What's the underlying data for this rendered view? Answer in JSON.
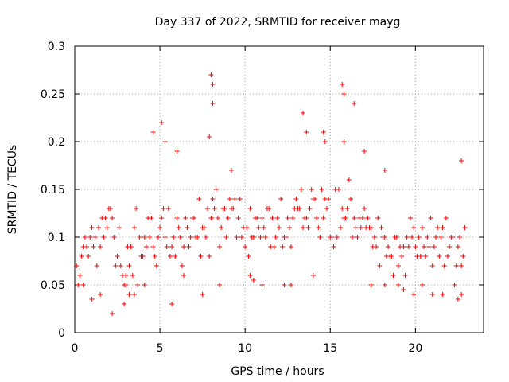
{
  "chart_data": {
    "type": "scatter",
    "title": "Day 337 of 2022, SRMTID for receiver mayg",
    "xlabel": "GPS time / hours",
    "ylabel": "SRMTID / TECUs",
    "xlim": [
      0,
      24
    ],
    "ylim": [
      0,
      0.3
    ],
    "xticks": [
      0,
      5,
      10,
      15,
      20
    ],
    "xtick_labels": [
      "0",
      "5",
      "10",
      "15",
      "20"
    ],
    "yticks": [
      0,
      0.05,
      0.1,
      0.15,
      0.2,
      0.25,
      0.3
    ],
    "ytick_labels": [
      "0",
      "0.05",
      "0.1",
      "0.15",
      "0.2",
      "0.25",
      "0.3"
    ],
    "grid": true,
    "marker": "plus",
    "color": "#ff0000",
    "series": [
      {
        "name": "mayg",
        "x": [
          0.1,
          0.3,
          0.5,
          0.6,
          0.8,
          1.0,
          1.1,
          1.3,
          1.5,
          1.7,
          1.9,
          2.0,
          2.2,
          2.3,
          2.5,
          2.7,
          2.9,
          3.0,
          3.2,
          3.3,
          3.5,
          3.6,
          3.8,
          4.0,
          4.2,
          4.4,
          4.5,
          4.7,
          4.9,
          5.0,
          5.2,
          5.4,
          5.6,
          5.8,
          6.0,
          6.2,
          6.4,
          6.6,
          6.8,
          7.0,
          7.2,
          7.4,
          7.6,
          7.8,
          8.0,
          8.1,
          8.2,
          8.4,
          8.6,
          8.8,
          9.0,
          9.2,
          9.4,
          9.6,
          9.8,
          10.0,
          10.2,
          10.4,
          10.6,
          10.8,
          11.0,
          11.2,
          11.4,
          11.6,
          11.8,
          12.0,
          12.2,
          12.4,
          12.6,
          12.8,
          13.0,
          13.2,
          13.4,
          13.6,
          13.8,
          14.0,
          14.2,
          14.4,
          14.6,
          14.8,
          15.0,
          15.2,
          15.4,
          15.6,
          15.8,
          16.0,
          16.2,
          16.4,
          16.6,
          16.8,
          17.0,
          17.2,
          17.4,
          17.6,
          17.8,
          18.0,
          18.2,
          18.4,
          18.6,
          18.8,
          19.0,
          19.2,
          19.4,
          19.6,
          19.8,
          20.0,
          20.2,
          20.4,
          20.6,
          20.8,
          21.0,
          21.2,
          21.4,
          21.6,
          21.8,
          22.0,
          22.2,
          22.4,
          22.6,
          22.8,
          0.2,
          0.7,
          1.2,
          1.6,
          2.1,
          2.6,
          3.1,
          3.4,
          3.7,
          4.1,
          4.6,
          5.1,
          5.5,
          5.9,
          6.3,
          6.7,
          7.1,
          7.5,
          7.9,
          8.3,
          8.7,
          9.1,
          9.5,
          9.9,
          10.3,
          10.7,
          11.1,
          11.5,
          11.9,
          12.3,
          12.7,
          13.1,
          13.5,
          13.9,
          14.3,
          14.7,
          15.1,
          15.5,
          15.9,
          16.3,
          16.7,
          17.1,
          17.5,
          17.9,
          18.3,
          18.7,
          19.1,
          19.5,
          19.9,
          20.3,
          20.7,
          21.1,
          21.5,
          21.9,
          22.3,
          22.7,
          0.4,
          0.9,
          1.4,
          1.8,
          2.4,
          2.8,
          3.3,
          3.9,
          4.3,
          4.8,
          5.3,
          5.7,
          6.1,
          6.5,
          6.9,
          7.3,
          7.7,
          8.05,
          8.5,
          8.9,
          9.3,
          9.7,
          10.1,
          10.5,
          10.9,
          11.3,
          11.7,
          12.1,
          12.5,
          12.9,
          13.3,
          13.7,
          14.1,
          14.5,
          14.9,
          15.3,
          15.7,
          16.1,
          16.5,
          16.9,
          17.3,
          17.7,
          18.1,
          18.5,
          18.9,
          19.3,
          19.7,
          20.1,
          20.5,
          20.9,
          21.3,
          21.7,
          22.1,
          22.5,
          22.9,
          1.0,
          1.5,
          2.2,
          3.0,
          3.5,
          4.6,
          5.1,
          5.3,
          6.0,
          7.9,
          8.0,
          8.1,
          8.1,
          9.2,
          11.0,
          12.3,
          13.4,
          13.6,
          14.6,
          14.7,
          15.7,
          15.8,
          15.8,
          16.4,
          17.0,
          18.2,
          19.0,
          20.4,
          21.6,
          22.7,
          0.5,
          2.9,
          3.2,
          4.1,
          5.7,
          6.4,
          7.5,
          8.5,
          10.3,
          10.5,
          12.7,
          14.0,
          17.4,
          18.2,
          19.3,
          19.9,
          21.0,
          22.5,
          22.7
        ],
        "y": [
          0.07,
          0.06,
          0.09,
          0.1,
          0.08,
          0.11,
          0.09,
          0.07,
          0.09,
          0.1,
          0.11,
          0.13,
          0.12,
          0.1,
          0.08,
          0.07,
          0.05,
          0.06,
          0.07,
          0.09,
          0.11,
          0.13,
          0.1,
          0.08,
          0.09,
          0.1,
          0.12,
          0.08,
          0.1,
          0.11,
          0.13,
          0.09,
          0.08,
          0.1,
          0.12,
          0.1,
          0.09,
          0.11,
          0.1,
          0.12,
          0.1,
          0.08,
          0.11,
          0.13,
          0.12,
          0.14,
          0.13,
          0.12,
          0.11,
          0.13,
          0.12,
          0.13,
          0.14,
          0.12,
          0.1,
          0.09,
          0.08,
          0.1,
          0.12,
          0.11,
          0.12,
          0.1,
          0.13,
          0.12,
          0.1,
          0.11,
          0.09,
          0.1,
          0.11,
          0.12,
          0.14,
          0.13,
          0.11,
          0.12,
          0.13,
          0.14,
          0.12,
          0.1,
          0.12,
          0.13,
          0.1,
          0.09,
          0.1,
          0.11,
          0.12,
          0.13,
          0.14,
          0.12,
          0.1,
          0.11,
          0.13,
          0.12,
          0.11,
          0.1,
          0.12,
          0.11,
          0.1,
          0.09,
          0.08,
          0.1,
          0.07,
          0.08,
          0.06,
          0.09,
          0.1,
          0.09,
          0.1,
          0.11,
          0.08,
          0.09,
          0.07,
          0.1,
          0.08,
          0.11,
          0.12,
          0.09,
          0.1,
          0.07,
          0.1,
          0.08,
          0.05,
          0.09,
          0.1,
          0.12,
          0.13,
          0.11,
          0.09,
          0.06,
          0.05,
          0.1,
          0.09,
          0.12,
          0.13,
          0.08,
          0.07,
          0.09,
          0.1,
          0.11,
          0.08,
          0.15,
          0.13,
          0.14,
          0.1,
          0.11,
          0.13,
          0.12,
          0.11,
          0.09,
          0.12,
          0.1,
          0.09,
          0.13,
          0.12,
          0.15,
          0.11,
          0.14,
          0.1,
          0.15,
          0.12,
          0.1,
          0.12,
          0.11,
          0.09,
          0.07,
          0.08,
          0.06,
          0.09,
          0.1,
          0.11,
          0.08,
          0.1,
          0.09,
          0.1,
          0.08,
          0.05,
          0.07,
          0.08,
          0.1,
          0.11,
          0.12,
          0.07,
          0.06,
          0.09,
          0.08,
          0.12,
          0.07,
          0.1,
          0.09,
          0.11,
          0.12,
          0.12,
          0.14,
          0.1,
          0.12,
          0.09,
          0.1,
          0.13,
          0.14,
          0.11,
          0.1,
          0.1,
          0.13,
          0.09,
          0.14,
          0.12,
          0.13,
          0.15,
          0.11,
          0.14,
          0.15,
          0.14,
          0.15,
          0.13,
          0.16,
          0.11,
          0.12,
          0.11,
          0.09,
          0.1,
          0.08,
          0.1,
          0.09,
          0.12,
          0.08,
          0.09,
          0.12,
          0.11,
          0.07,
          0.1,
          0.09,
          0.11,
          0.035,
          0.04,
          0.02,
          0.05,
          0.04,
          0.21,
          0.22,
          0.2,
          0.19,
          0.205,
          0.27,
          0.24,
          0.26,
          0.17,
          0.05,
          0.05,
          0.23,
          0.21,
          0.21,
          0.2,
          0.26,
          0.25,
          0.2,
          0.24,
          0.19,
          0.17,
          0.05,
          0.05,
          0.04,
          0.18,
          0.05,
          0.03,
          0.04,
          0.05,
          0.03,
          0.06,
          0.04,
          0.05,
          0.06,
          0.055,
          0.05,
          0.06,
          0.05,
          0.05,
          0.045,
          0.04,
          0.04,
          0.035,
          0.04
        ]
      }
    ]
  }
}
